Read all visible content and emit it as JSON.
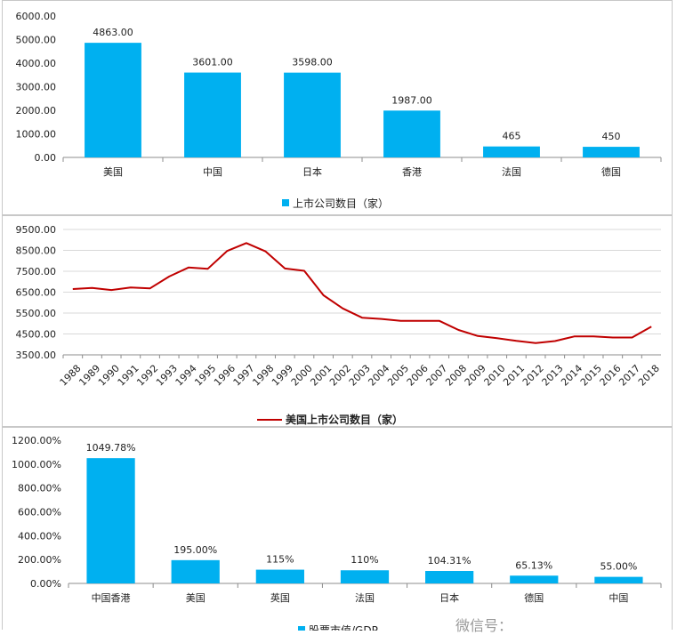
{
  "colors": {
    "bar": "#00b0f0",
    "line": "#c00000",
    "grid": "#d9d9d9",
    "axis": "#8c8c8c"
  },
  "watermark": "微信号：",
  "chart_data": [
    {
      "type": "bar",
      "categories": [
        "美国",
        "中国",
        "日本",
        "香港",
        "法国",
        "德国"
      ],
      "values": [
        4863,
        3601,
        3598,
        1987,
        465,
        450
      ],
      "data_labels": [
        "4863.00",
        "3601.00",
        "3598.00",
        "1987.00",
        "465",
        "450"
      ],
      "ytick_labels": [
        "0.00",
        "1000.00",
        "2000.00",
        "3000.00",
        "4000.00",
        "5000.00",
        "6000.00"
      ],
      "ylim": [
        0,
        6000
      ],
      "legend": "上市公司数目（家）",
      "legend_position": "bottom",
      "grid": false
    },
    {
      "type": "line",
      "x": [
        "1988",
        "1989",
        "1990",
        "1991",
        "1992",
        "1993",
        "1994",
        "1995",
        "1996",
        "1997",
        "1998",
        "1999",
        "2000",
        "2001",
        "2002",
        "2003",
        "2004",
        "2005",
        "2006",
        "2007",
        "2008",
        "2009",
        "2010",
        "2011",
        "2012",
        "2013",
        "2014",
        "2015",
        "2016",
        "2017",
        "2018"
      ],
      "values": [
        6650,
        6700,
        6600,
        6720,
        6680,
        7250,
        7680,
        7620,
        8470,
        8850,
        8450,
        7630,
        7520,
        6350,
        5720,
        5280,
        5220,
        5130,
        5130,
        5130,
        4690,
        4400,
        4300,
        4170,
        4060,
        4160,
        4380,
        4380,
        4330,
        4330,
        4850
      ],
      "ytick_labels": [
        "3500.00",
        "4500.00",
        "5500.00",
        "6500.00",
        "7500.00",
        "8500.00",
        "9500.00"
      ],
      "ylim": [
        3500,
        9500
      ],
      "series_name": "美国上市公司数目（家）",
      "legend_position": "bottom",
      "grid": true
    },
    {
      "type": "bar",
      "categories": [
        "中国香港",
        "美国",
        "英国",
        "法国",
        "日本",
        "德国",
        "中国"
      ],
      "values": [
        1049.78,
        195.0,
        115,
        110,
        104.31,
        65.13,
        55.0
      ],
      "data_labels": [
        "1049.78%",
        "195.00%",
        "115%",
        "110%",
        "104.31%",
        "65.13%",
        "55.00%"
      ],
      "ytick_labels": [
        "0.00%",
        "200.00%",
        "400.00%",
        "600.00%",
        "800.00%",
        "1000.00%",
        "1200.00%"
      ],
      "ylim": [
        0,
        1200
      ],
      "legend": "股票市值/GDP",
      "legend_position": "bottom",
      "grid": false
    }
  ]
}
